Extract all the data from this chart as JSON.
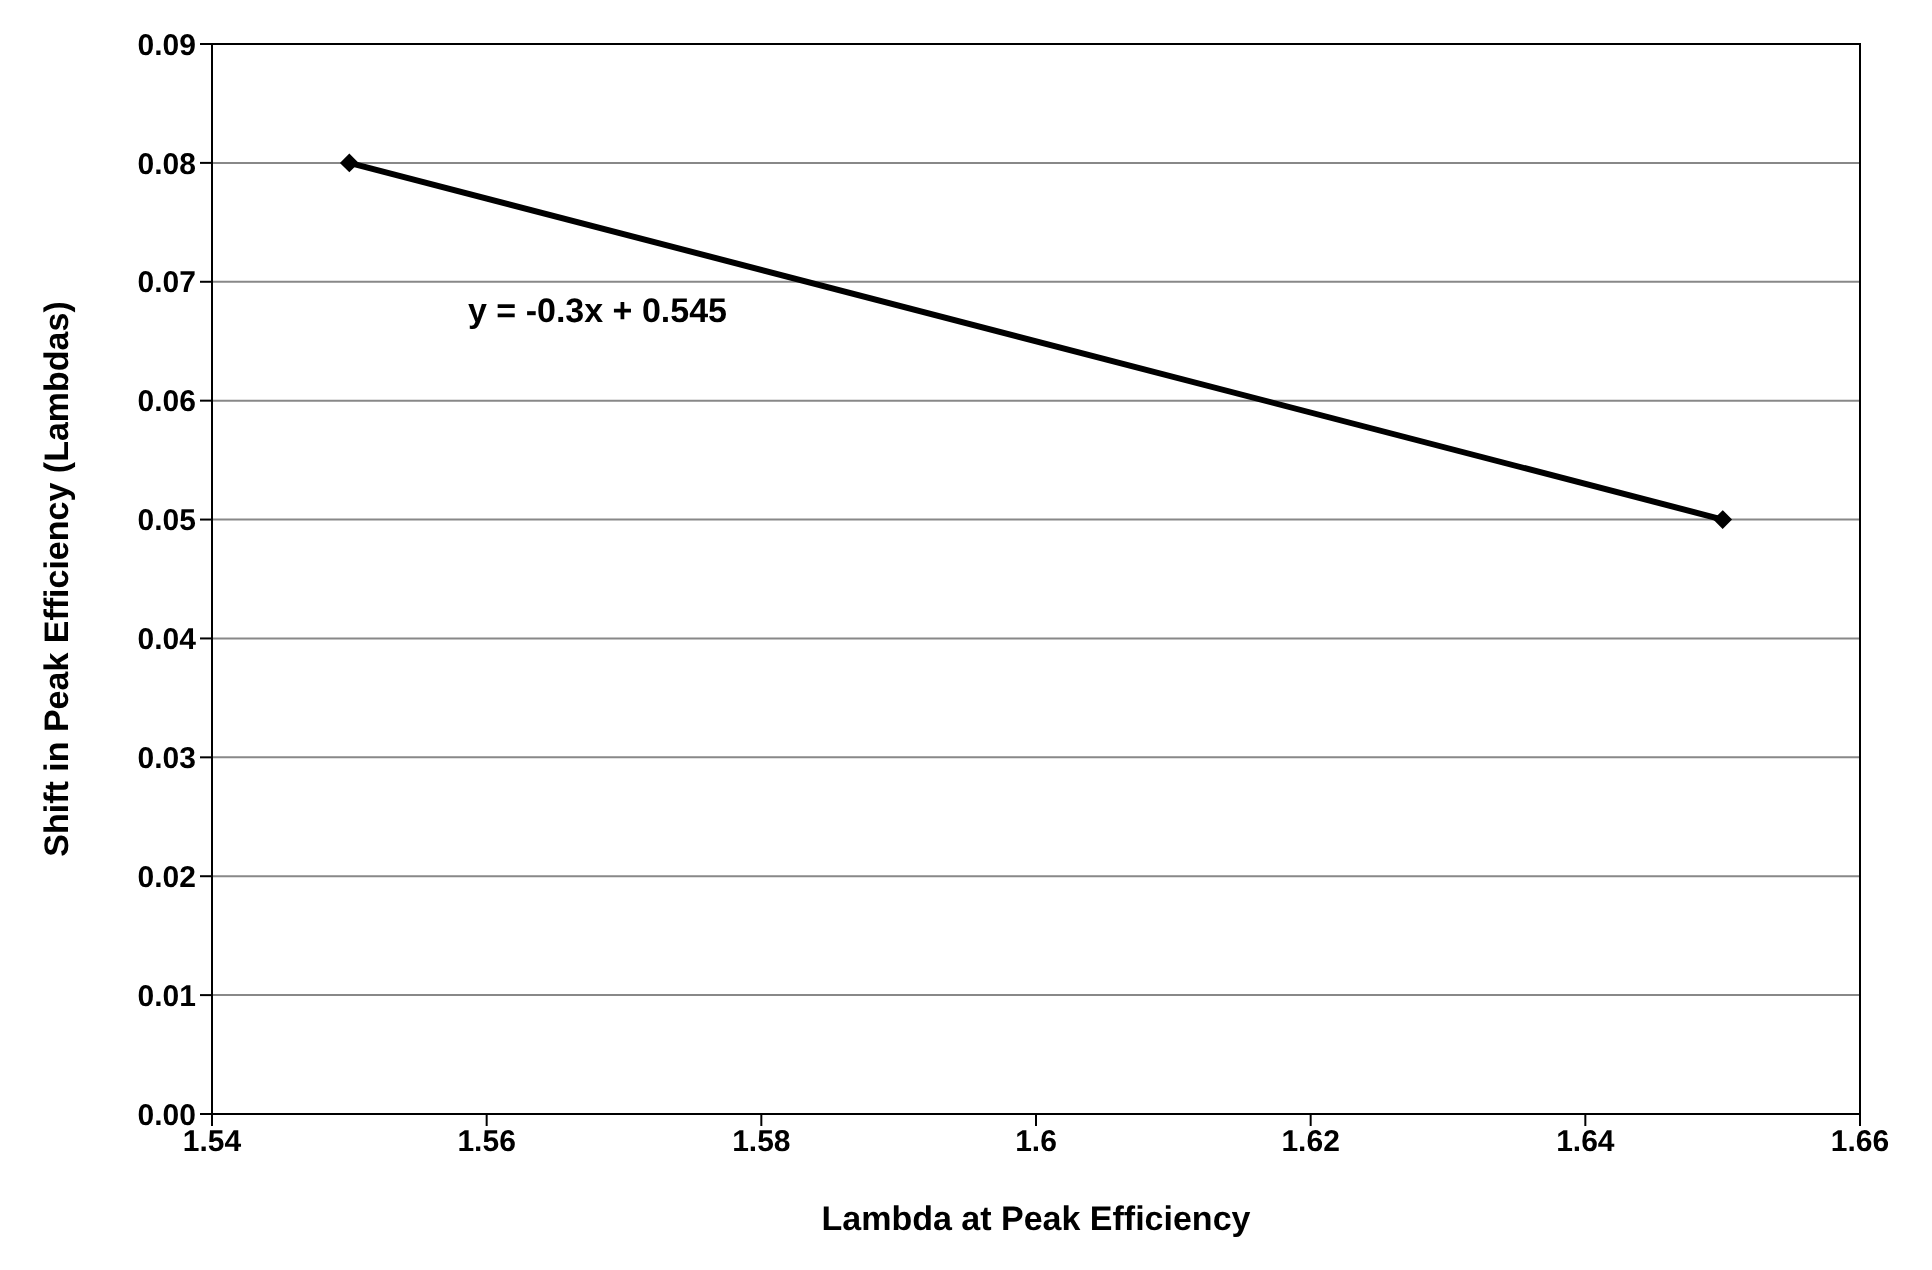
{
  "chart_data": {
    "type": "line",
    "xlabel": "Lambda at Peak Efficiency",
    "ylabel": "Shift in Peak Efficiency (Lambdas)",
    "x": [
      1.55,
      1.65
    ],
    "series": [
      {
        "color": "#000000",
        "values": [
          0.08,
          0.05
        ]
      }
    ],
    "xlim": [
      1.54,
      1.66
    ],
    "xticks": [
      1.54,
      1.56,
      1.58,
      1.6,
      1.62,
      1.64,
      1.66
    ],
    "ylim": [
      0,
      0.09
    ],
    "yticks": [
      {
        "value": 0,
        "label": "0.00"
      },
      0.01,
      0.02,
      0.03,
      0.04,
      0.05,
      0.06,
      0.07,
      0.08,
      0.09
    ],
    "grid": "y",
    "marker": "diamond",
    "line_style": "solid",
    "legend": false,
    "annotations": [
      "y = -0.3x + 0.545"
    ]
  }
}
